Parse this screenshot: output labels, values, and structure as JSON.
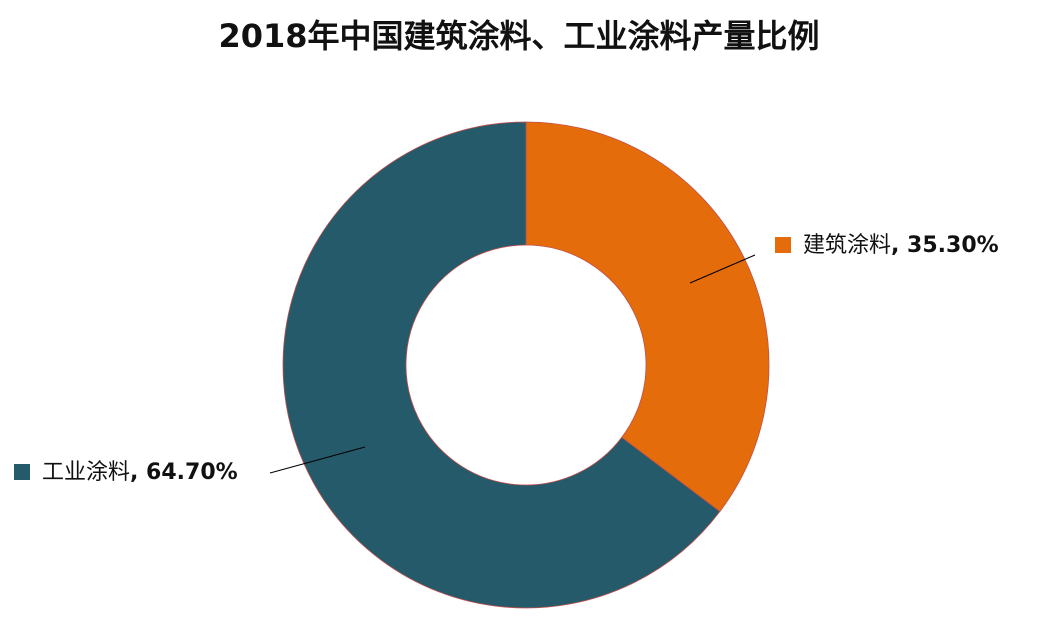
{
  "chart_data": {
    "type": "donut",
    "title": "2018年中国建筑涂料、工业涂料产量比例",
    "categories": [
      "建筑涂料",
      "工业涂料"
    ],
    "values": [
      35.3,
      64.7
    ],
    "value_labels": [
      "35.30%",
      "64.70%"
    ],
    "label_separator": ", ",
    "colors": [
      "#e46c0a",
      "#245a6a"
    ]
  }
}
